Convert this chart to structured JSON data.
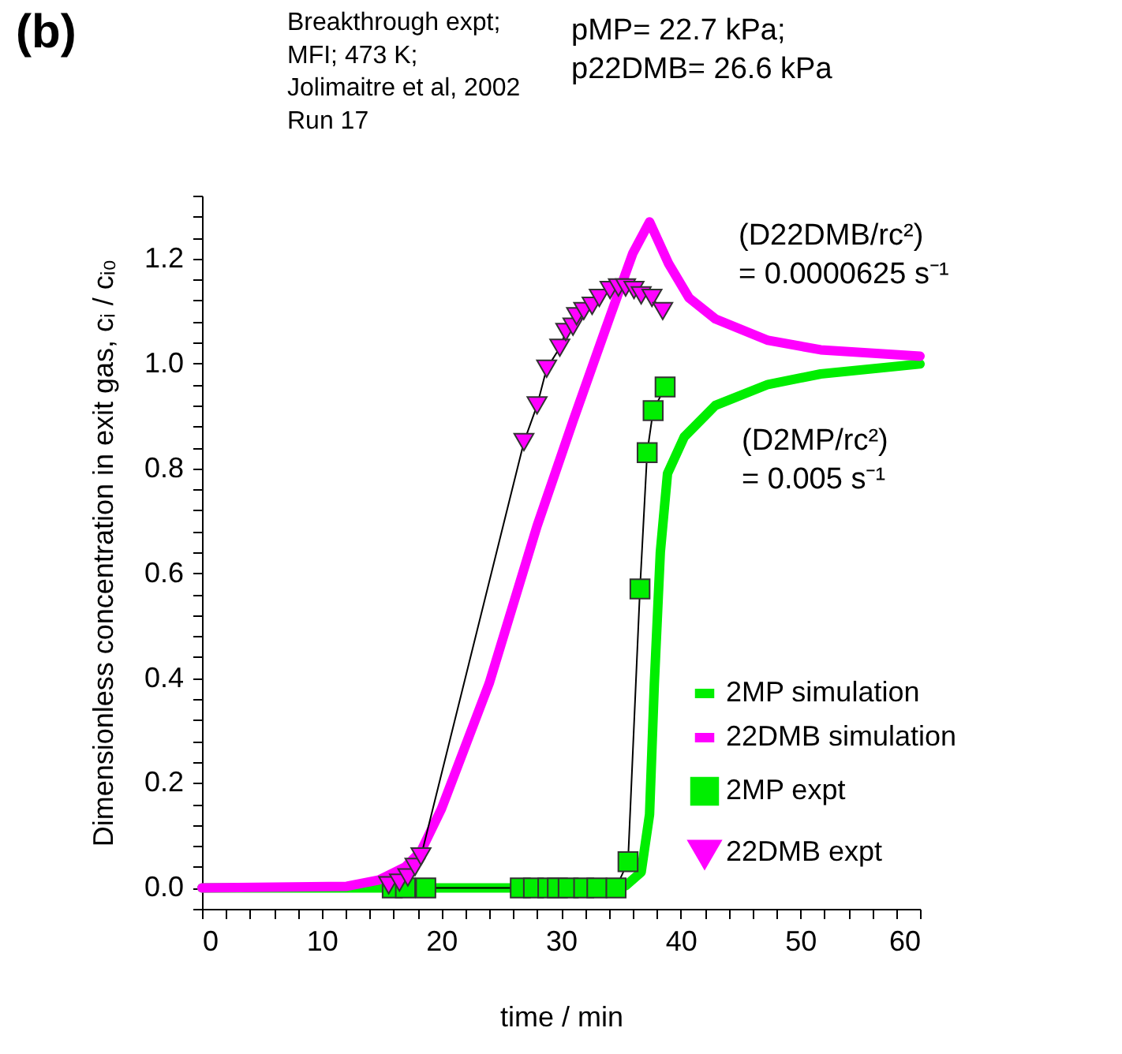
{
  "chart_data": {
    "type": "line",
    "xlabel": "time / min",
    "ylabel": "Dimensionless concentration in exit gas, cᵢ / cᵢ₀",
    "xlim": [
      0,
      60
    ],
    "ylim": [
      -0.04,
      1.32
    ],
    "xticks": [
      0,
      {
        "value": 2,
        "label": null
      },
      {
        "value": 4,
        "label": null
      },
      {
        "value": 6,
        "label": null
      },
      {
        "value": 8,
        "label": null
      },
      10,
      {
        "value": 12,
        "label": null
      },
      {
        "value": 14,
        "label": null
      },
      {
        "value": 16,
        "label": null
      },
      {
        "value": 18,
        "label": null
      },
      20,
      {
        "value": 22,
        "label": null
      },
      {
        "value": 24,
        "label": null
      },
      {
        "value": 26,
        "label": null
      },
      {
        "value": 28,
        "label": null
      },
      30,
      {
        "value": 32,
        "label": null
      },
      {
        "value": 34,
        "label": null
      },
      {
        "value": 36,
        "label": null
      },
      {
        "value": 38,
        "label": null
      },
      40,
      {
        "value": 42,
        "label": null
      },
      {
        "value": 44,
        "label": null
      },
      {
        "value": 46,
        "label": null
      },
      {
        "value": 48,
        "label": null
      },
      50,
      {
        "value": 52,
        "label": null
      },
      {
        "value": 54,
        "label": null
      },
      {
        "value": 56,
        "label": null
      },
      {
        "value": 58,
        "label": null
      },
      60
    ],
    "yticks": [
      {
        "value": -0.04,
        "label": null
      },
      {
        "value": 0,
        "label": "0.0"
      },
      {
        "value": 0.04,
        "label": null
      },
      {
        "value": 0.08,
        "label": null
      },
      {
        "value": 0.12,
        "label": null
      },
      {
        "value": 0.16,
        "label": null
      },
      {
        "value": 0.2,
        "label": "0.2"
      },
      {
        "value": 0.24,
        "label": null
      },
      {
        "value": 0.28,
        "label": null
      },
      {
        "value": 0.32,
        "label": null
      },
      {
        "value": 0.36,
        "label": null
      },
      {
        "value": 0.4,
        "label": "0.4"
      },
      {
        "value": 0.44,
        "label": null
      },
      {
        "value": 0.48,
        "label": null
      },
      {
        "value": 0.52,
        "label": null
      },
      {
        "value": 0.56,
        "label": null
      },
      {
        "value": 0.6,
        "label": "0.6"
      },
      {
        "value": 0.64,
        "label": null
      },
      {
        "value": 0.68,
        "label": null
      },
      {
        "value": 0.72,
        "label": null
      },
      {
        "value": 0.76,
        "label": null
      },
      {
        "value": 0.8,
        "label": "0.8"
      },
      {
        "value": 0.84,
        "label": null
      },
      {
        "value": 0.88,
        "label": null
      },
      {
        "value": 0.92,
        "label": null
      },
      {
        "value": 0.96,
        "label": null
      },
      {
        "value": 1.0,
        "label": "1.0"
      },
      {
        "value": 1.04,
        "label": null
      },
      {
        "value": 1.08,
        "label": null
      },
      {
        "value": 1.12,
        "label": null
      },
      {
        "value": 1.16,
        "label": null
      },
      {
        "value": 1.2,
        "label": "1.2"
      },
      {
        "value": 1.24,
        "label": null
      },
      {
        "value": 1.28,
        "label": null
      },
      {
        "value": 1.32,
        "label": null
      }
    ],
    "grid": false,
    "legend": "bottom right",
    "series": [
      {
        "name": "2MP simulation",
        "color": "#00ee00",
        "marker": "none",
        "x": [
          0,
          20,
          30,
          35.4,
          36.7,
          37.4,
          37.8,
          38.3,
          38.9,
          40.3,
          42.9,
          47.3,
          51.7,
          60
        ],
        "values": [
          0,
          0,
          0,
          0.004,
          0.03,
          0.14,
          0.39,
          0.64,
          0.79,
          0.86,
          0.92,
          0.96,
          0.98,
          0.999
        ]
      },
      {
        "name": "22DMB simulation",
        "color": "#ff00ff",
        "marker": "none",
        "x": [
          0,
          12.1,
          14.8,
          17,
          18.3,
          20,
          24,
          28,
          31,
          34.1,
          36,
          37.4,
          39,
          40.7,
          42.9,
          47.3,
          51.7,
          60
        ],
        "values": [
          0,
          0.003,
          0.015,
          0.04,
          0.07,
          0.15,
          0.39,
          0.69,
          0.89,
          1.09,
          1.21,
          1.27,
          1.19,
          1.125,
          1.085,
          1.044,
          1.026,
          1.014
        ]
      },
      {
        "name": "2MP expt",
        "color": "#00ee00",
        "marker": "square",
        "x": [
          15.9,
          17.0,
          18.7,
          26.6,
          27.7,
          28.9,
          29.7,
          30.6,
          31.9,
          33.0,
          34.6,
          35.6,
          36.6,
          37.2,
          37.7,
          38.7
        ],
        "values": [
          0,
          0,
          0,
          0,
          0,
          0,
          0,
          0,
          0,
          0,
          0,
          0.05,
          0.57,
          0.83,
          0.91,
          0.955
        ]
      },
      {
        "name": "22DMB expt",
        "color": "#ff00ff",
        "marker": "triangle",
        "x": [
          15.6,
          16.5,
          17.2,
          17.8,
          18.3,
          26.9,
          28.0,
          28.8,
          29.9,
          30.4,
          31.0,
          31.3,
          31.9,
          32.6,
          33.2,
          34.1,
          34.8,
          35.4,
          36.1,
          36.7,
          37.6,
          38.5
        ],
        "values": [
          0.005,
          0.01,
          0.02,
          0.04,
          0.06,
          0.85,
          0.92,
          0.99,
          1.03,
          1.06,
          1.07,
          1.09,
          1.1,
          1.11,
          1.125,
          1.14,
          1.145,
          1.145,
          1.14,
          1.13,
          1.125,
          1.1
        ]
      }
    ],
    "annotations": [
      "(b)",
      "Breakthrough expt;\nMFI; 473 K;\nJolimaitre et al, 2002\nRun 17",
      "pMP= 22.7 kPa;\np22DMB= 26.6 kPa",
      "(D22DMB/rc²)\n = 0.0000625 s⁻¹",
      "(D2MP/rc²)\n = 0.005 s⁻¹"
    ]
  }
}
